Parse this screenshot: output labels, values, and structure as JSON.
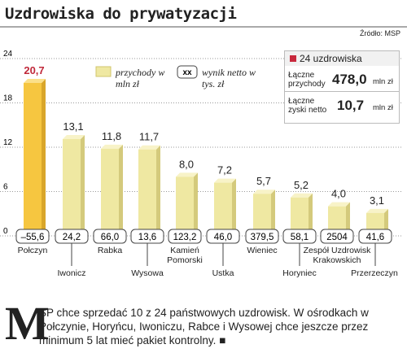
{
  "chart_data": {
    "type": "bar",
    "title": "Uzdrowiska do prywatyzacji",
    "source": "Źródło: MSP",
    "categories": [
      "Połczyn",
      "Iwonicz",
      "Rabka",
      "Wysowa",
      "Kamień Pomorski",
      "Ustka",
      "Wieniec",
      "Horyniec",
      "Zespół Uzdrowisk Krakowskich",
      "Przerzeczyn"
    ],
    "series": [
      {
        "name": "przychody w mln zł",
        "color": "#efe8a2",
        "values": [
          20.7,
          13.1,
          11.8,
          11.7,
          8.0,
          7.2,
          5.7,
          5.2,
          4.0,
          3.1
        ],
        "value_labels": [
          "20,7",
          "13,1",
          "11,8",
          "11,7",
          "8,0",
          "7,2",
          "5,7",
          "5,2",
          "4,0",
          "3,1"
        ]
      }
    ],
    "highlight_color": "#f6c640",
    "net_result": {
      "name": "wynik netto w tys. zł",
      "symbol": "xx",
      "values": [
        -55.6,
        24.2,
        66.0,
        13.6,
        123.2,
        46.0,
        379.5,
        58.1,
        2504,
        41.6
      ],
      "value_labels": [
        "–55,6",
        "24,2",
        "66,0",
        "13,6",
        "123,2",
        "46,0",
        "379,5",
        "58,1",
        "2504",
        "41,6"
      ]
    },
    "ylim": [
      0,
      24
    ],
    "yticks": [
      0,
      6,
      12,
      18,
      24
    ],
    "grid": true,
    "summary": {
      "heading": "24 uzdrowiska",
      "revenue_label": "Łączne przychody",
      "revenue": "478,0",
      "revenue_unit": "mln zł",
      "profit_label": "Łączne zyski netto",
      "profit": "10,7",
      "profit_unit": "mln zł"
    }
  },
  "article": {
    "lead_letter": "M",
    "text": "SP chce sprzedać 10 z 24 państwowych uzdrowisk. W ośrodkach w Połczynie, Horyńcu, Iwoniczu, Rabce i Wysowej chce jeszcze przez minimum 5 lat mieć pakiet kontrolny. ■"
  }
}
